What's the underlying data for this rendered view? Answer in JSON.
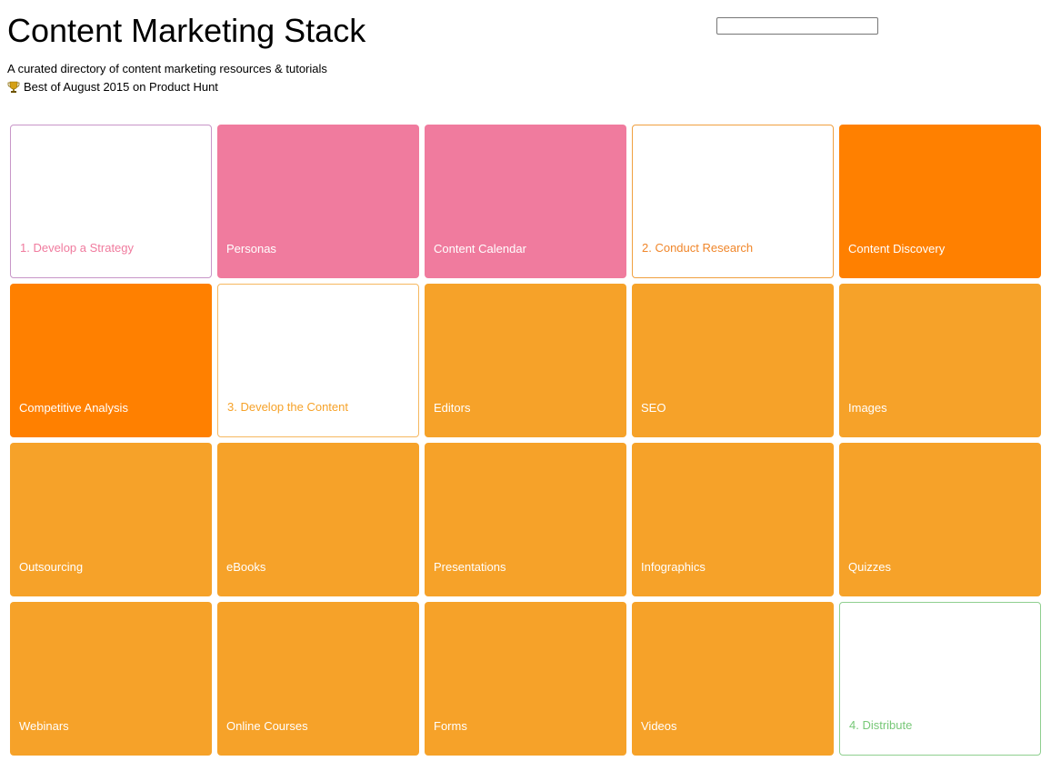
{
  "header": {
    "title": "Content Marketing Stack",
    "subtitle": "A curated directory of content marketing resources & tutorials",
    "award": "Best of August 2015 on Product Hunt",
    "award_icon": "trophy-icon"
  },
  "search": {
    "value": "",
    "placeholder": ""
  },
  "colors": {
    "pink": "#f07b9e",
    "orange": "#ff8000",
    "amber": "#f6a229",
    "green": "#78c878"
  },
  "tiles": [
    {
      "label": "1. Develop a Strategy",
      "kind": "step-pink"
    },
    {
      "label": "Personas",
      "kind": "pink"
    },
    {
      "label": "Content Calendar",
      "kind": "pink"
    },
    {
      "label": "2. Conduct Research",
      "kind": "step-orange"
    },
    {
      "label": "Content Discovery",
      "kind": "orange"
    },
    {
      "label": "Competitive Analysis",
      "kind": "orange"
    },
    {
      "label": "3. Develop the Content",
      "kind": "step-amber"
    },
    {
      "label": "Editors",
      "kind": "amber"
    },
    {
      "label": "SEO",
      "kind": "amber"
    },
    {
      "label": "Images",
      "kind": "amber"
    },
    {
      "label": "Outsourcing",
      "kind": "amber"
    },
    {
      "label": "eBooks",
      "kind": "amber"
    },
    {
      "label": "Presentations",
      "kind": "amber"
    },
    {
      "label": "Infographics",
      "kind": "amber"
    },
    {
      "label": "Quizzes",
      "kind": "amber"
    },
    {
      "label": "Webinars",
      "kind": "amber"
    },
    {
      "label": "Online Courses",
      "kind": "amber"
    },
    {
      "label": "Forms",
      "kind": "amber"
    },
    {
      "label": "Videos",
      "kind": "amber"
    },
    {
      "label": "4. Distribute",
      "kind": "step-green"
    }
  ]
}
